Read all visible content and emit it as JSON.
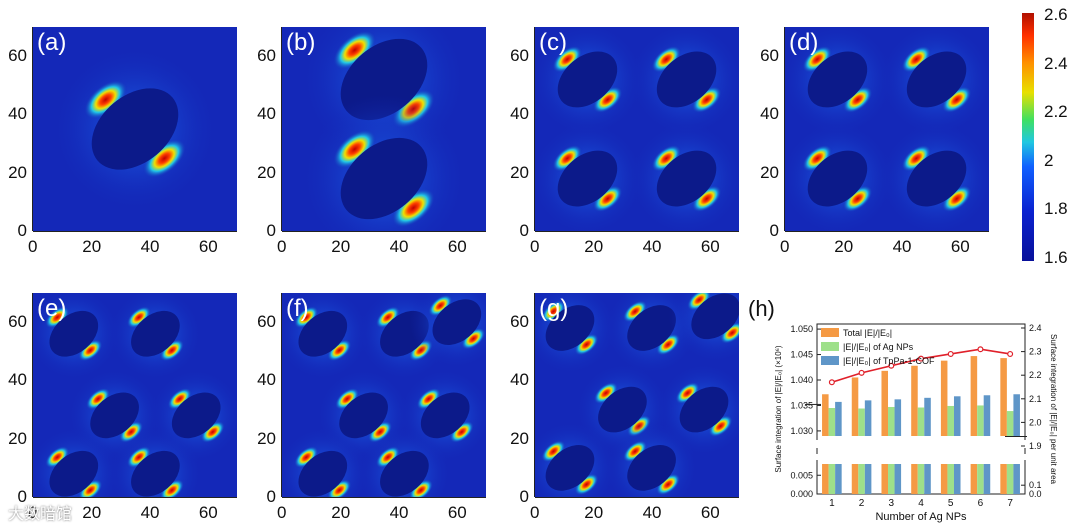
{
  "fields": {
    "panels": [
      {
        "label": "(a)",
        "y_ticks": [
          "0",
          "20",
          "40",
          "60"
        ],
        "x_ticks": [
          "0",
          "20",
          "40",
          "60"
        ]
      },
      {
        "label": "(b)",
        "y_ticks": [
          "0",
          "20",
          "40",
          "60"
        ],
        "x_ticks": [
          "0",
          "20",
          "40",
          "60"
        ]
      },
      {
        "label": "(c)",
        "y_ticks": [
          "0",
          "20",
          "40",
          "60"
        ],
        "x_ticks": [
          "0",
          "20",
          "40",
          "60"
        ]
      },
      {
        "label": "(d)",
        "y_ticks": [
          "0",
          "20",
          "40",
          "60"
        ],
        "x_ticks": [
          "0",
          "20",
          "40",
          "60"
        ]
      },
      {
        "label": "(e)",
        "y_ticks": [
          "0",
          "20",
          "40",
          "60"
        ],
        "x_ticks": [
          "0",
          "20",
          "40",
          "60"
        ]
      },
      {
        "label": "(f)",
        "y_ticks": [
          "0",
          "20",
          "40",
          "60"
        ],
        "x_ticks": [
          "0",
          "20",
          "40",
          "60"
        ]
      },
      {
        "label": "(g)",
        "y_ticks": [
          "0",
          "20",
          "40",
          "60"
        ],
        "x_ticks": [
          "0",
          "20",
          "40",
          "60"
        ]
      }
    ],
    "colorbar_ticks": [
      "2.6",
      "2.4",
      "2.2",
      "2",
      "1.8",
      "1.6"
    ],
    "watermark": "大数暗馆"
  },
  "chart_data": [
    {
      "type": "heatmap",
      "description_panels": [
        "(a)",
        "(b)",
        "(c)",
        "(d)",
        "(e)",
        "(f)",
        "(g)"
      ],
      "colorbar": {
        "min": 1.6,
        "max": 2.6,
        "ticks": [
          2.6,
          2.4,
          2.2,
          2,
          1.8,
          1.6
        ]
      },
      "xlim": [
        0,
        70
      ],
      "ylim": [
        0,
        70
      ]
    },
    {
      "type": "bar",
      "panel_label": "(h)",
      "categories": [
        "1",
        "2",
        "3",
        "4",
        "5",
        "6",
        "7"
      ],
      "xlabel": "Number of Ag NPs",
      "ylabel": "Surface integration of |E|/|E₀| (×10⁶)",
      "y2label": "Surface integration of |E|/|E₀| per unit area",
      "left_ticks": [
        "0.000",
        "0.005",
        "1.030",
        "1.035",
        "1.040",
        "1.045",
        "1.050"
      ],
      "right_ticks": [
        "0.0",
        "0.1",
        "1.9",
        "2.0",
        "2.1",
        "2.2",
        "2.3",
        "2.4"
      ],
      "series": [
        {
          "name": "Total |E|/|E₀|",
          "color": "#f59a44",
          "values": [
            1.0372,
            1.0405,
            1.0418,
            1.0428,
            1.0438,
            1.0447,
            1.0443
          ]
        },
        {
          "name": "|E|/|E₀| of Ag NPs",
          "color": "#9ee08a",
          "values": [
            1.0345,
            1.0344,
            1.0347,
            1.0346,
            1.0349,
            1.035,
            1.0339
          ]
        },
        {
          "name": "|E|/|E₀| of TpPa-1-COF",
          "color": "#5f96c8",
          "values": [
            1.0357,
            1.036,
            1.0362,
            1.0365,
            1.0368,
            1.037,
            1.0372
          ]
        }
      ],
      "line": {
        "color": "#e0202a",
        "values": [
          2.17,
          2.21,
          2.24,
          2.27,
          2.29,
          2.31,
          2.29
        ]
      }
    }
  ]
}
